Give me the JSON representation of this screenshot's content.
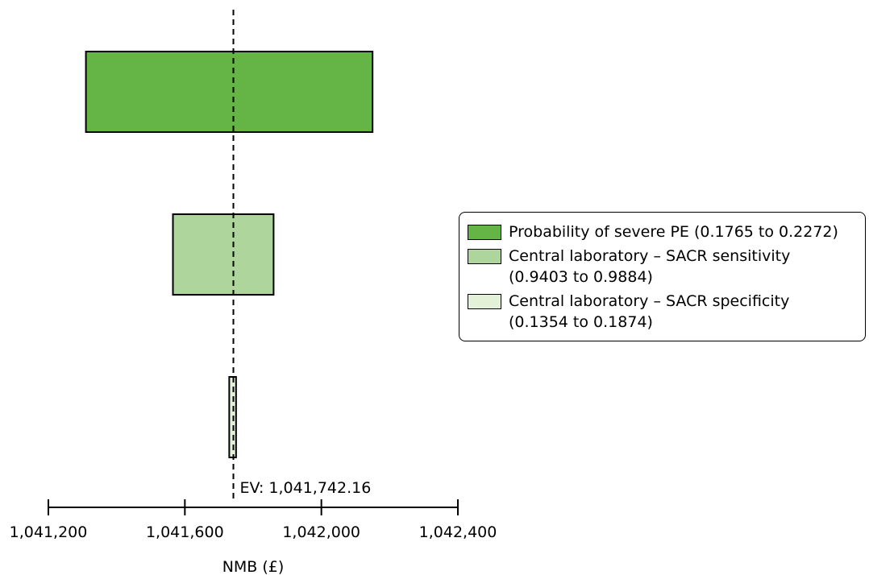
{
  "chart_data": {
    "type": "bar",
    "subtype": "tornado",
    "xlabel": "NMB (£)",
    "xlim": [
      1041200,
      1042400
    ],
    "xticks": [
      1041200,
      1041600,
      1042000,
      1042400
    ],
    "xtick_labels": [
      "1,041,200",
      "1,041,600",
      "1,042,000",
      "1,042,400"
    ],
    "expected_value": 1041742.16,
    "ev_label": "EV: 1,041,742.16",
    "bars": [
      {
        "name": "Probability of severe PE",
        "range_text": "(0.1765 to 0.2272)",
        "low": 1041310,
        "high": 1042150,
        "color": "#64b446"
      },
      {
        "name": "Central laboratory – SACR sensitivity",
        "range_text": "(0.9403 to 0.9884)",
        "low": 1041565,
        "high": 1041860,
        "color": "#aed69c"
      },
      {
        "name": "Central laboratory – SACR specificity",
        "range_text": "(0.1354 to 0.1874)",
        "low": 1041730,
        "high": 1041750,
        "color": "#e2f1d8"
      }
    ]
  },
  "legend": {
    "placement": "right",
    "items": [
      {
        "line1": "Probability of severe PE (0.1765 to 0.2272)",
        "line2": ""
      },
      {
        "line1": "Central laboratory – SACR sensitivity",
        "line2": "(0.9403 to 0.9884)"
      },
      {
        "line1": "Central laboratory – SACR specificity",
        "line2": "(0.1354 to 0.1874)"
      }
    ]
  }
}
